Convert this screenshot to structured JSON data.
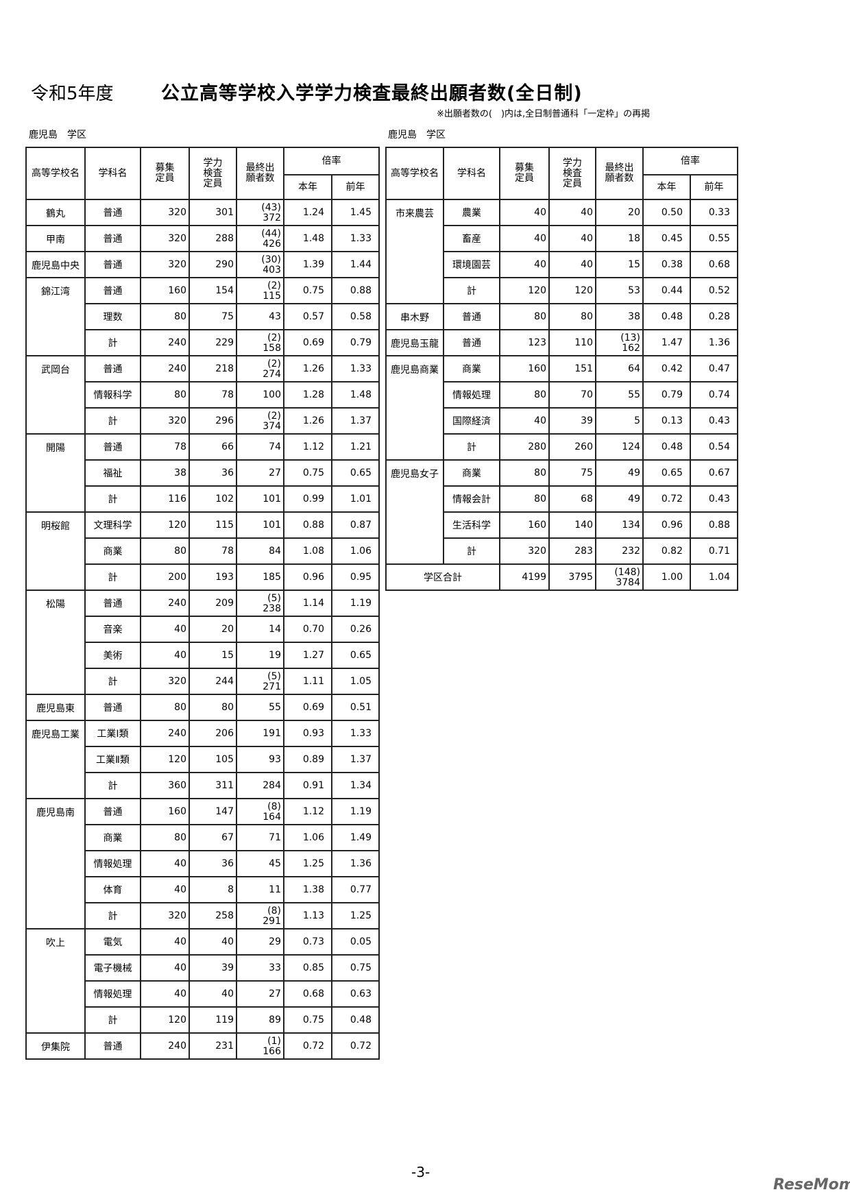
{
  "header": {
    "year": "令和5年度",
    "title": "公立高等学校入学学力検査最終出願者数(全日制)",
    "note": "※出願者数の(　)内は,全日制普通科「一定枠」の再掲"
  },
  "district_label": "鹿児島　学区",
  "columns": {
    "school": "高等学校名",
    "dept": "学科名",
    "boshu": "募集\n定員",
    "gakuryoku": "学力\n検査\n定員",
    "final": "最終出\n願者数",
    "ratio": "倍率",
    "this_year": "本年",
    "prev_year": "前年"
  },
  "left_table": [
    {
      "name": "鶴丸",
      "rows": [
        [
          "普通",
          "320",
          "301",
          "(43)",
          "372",
          "1.24",
          "1.45"
        ]
      ]
    },
    {
      "name": "甲南",
      "rows": [
        [
          "普通",
          "320",
          "288",
          "(44)",
          "426",
          "1.48",
          "1.33"
        ]
      ]
    },
    {
      "name": "鹿児島中央",
      "rows": [
        [
          "普通",
          "320",
          "290",
          "(30)",
          "403",
          "1.39",
          "1.44"
        ]
      ]
    },
    {
      "name": "錦江湾",
      "rows": [
        [
          "普通",
          "160",
          "154",
          "(2)",
          "115",
          "0.75",
          "0.88"
        ],
        [
          "理数",
          "80",
          "75",
          "",
          "43",
          "0.57",
          "0.58"
        ],
        [
          "計",
          "240",
          "229",
          "(2)",
          "158",
          "0.69",
          "0.79"
        ]
      ]
    },
    {
      "name": "武岡台",
      "rows": [
        [
          "普通",
          "240",
          "218",
          "(2)",
          "274",
          "1.26",
          "1.33"
        ],
        [
          "情報科学",
          "80",
          "78",
          "",
          "100",
          "1.28",
          "1.48"
        ],
        [
          "計",
          "320",
          "296",
          "(2)",
          "374",
          "1.26",
          "1.37"
        ]
      ]
    },
    {
      "name": "開陽",
      "rows": [
        [
          "普通",
          "78",
          "66",
          "",
          "74",
          "1.12",
          "1.21"
        ],
        [
          "福祉",
          "38",
          "36",
          "",
          "27",
          "0.75",
          "0.65"
        ],
        [
          "計",
          "116",
          "102",
          "",
          "101",
          "0.99",
          "1.01"
        ]
      ]
    },
    {
      "name": "明桜館",
      "rows": [
        [
          "文理科学",
          "120",
          "115",
          "",
          "101",
          "0.88",
          "0.87"
        ],
        [
          "商業",
          "80",
          "78",
          "",
          "84",
          "1.08",
          "1.06"
        ],
        [
          "計",
          "200",
          "193",
          "",
          "185",
          "0.96",
          "0.95"
        ]
      ]
    },
    {
      "name": "松陽",
      "rows": [
        [
          "普通",
          "240",
          "209",
          "(5)",
          "238",
          "1.14",
          "1.19"
        ],
        [
          "音楽",
          "40",
          "20",
          "",
          "14",
          "0.70",
          "0.26"
        ],
        [
          "美術",
          "40",
          "15",
          "",
          "19",
          "1.27",
          "0.65"
        ],
        [
          "計",
          "320",
          "244",
          "(5)",
          "271",
          "1.11",
          "1.05"
        ]
      ]
    },
    {
      "name": "鹿児島東",
      "rows": [
        [
          "普通",
          "80",
          "80",
          "",
          "55",
          "0.69",
          "0.51"
        ]
      ]
    },
    {
      "name": "鹿児島工業",
      "rows": [
        [
          "工業Ⅰ類",
          "240",
          "206",
          "",
          "191",
          "0.93",
          "1.33"
        ],
        [
          "工業Ⅱ類",
          "120",
          "105",
          "",
          "93",
          "0.89",
          "1.37"
        ],
        [
          "計",
          "360",
          "311",
          "",
          "284",
          "0.91",
          "1.34"
        ]
      ]
    },
    {
      "name": "鹿児島南",
      "rows": [
        [
          "普通",
          "160",
          "147",
          "(8)",
          "164",
          "1.12",
          "1.19"
        ],
        [
          "商業",
          "80",
          "67",
          "",
          "71",
          "1.06",
          "1.49"
        ],
        [
          "情報処理",
          "40",
          "36",
          "",
          "45",
          "1.25",
          "1.36"
        ],
        [
          "体育",
          "40",
          "8",
          "",
          "11",
          "1.38",
          "0.77"
        ],
        [
          "計",
          "320",
          "258",
          "(8)",
          "291",
          "1.13",
          "1.25"
        ]
      ]
    },
    {
      "name": "吹上",
      "rows": [
        [
          "電気",
          "40",
          "40",
          "",
          "29",
          "0.73",
          "0.05"
        ],
        [
          "電子機械",
          "40",
          "39",
          "",
          "33",
          "0.85",
          "0.75"
        ],
        [
          "情報処理",
          "40",
          "40",
          "",
          "27",
          "0.68",
          "0.63"
        ],
        [
          "計",
          "120",
          "119",
          "",
          "89",
          "0.75",
          "0.48"
        ]
      ]
    },
    {
      "name": "伊集院",
      "rows": [
        [
          "普通",
          "240",
          "231",
          "(1)",
          "166",
          "0.72",
          "0.72"
        ]
      ]
    }
  ],
  "right_table": [
    {
      "name": "市来農芸",
      "rows": [
        [
          "農業",
          "40",
          "40",
          "",
          "20",
          "0.50",
          "0.33"
        ],
        [
          "畜産",
          "40",
          "40",
          "",
          "18",
          "0.45",
          "0.55"
        ],
        [
          "環境園芸",
          "40",
          "40",
          "",
          "15",
          "0.38",
          "0.68"
        ],
        [
          "計",
          "120",
          "120",
          "",
          "53",
          "0.44",
          "0.52"
        ]
      ]
    },
    {
      "name": "串木野",
      "rows": [
        [
          "普通",
          "80",
          "80",
          "",
          "38",
          "0.48",
          "0.28"
        ]
      ]
    },
    {
      "name": "鹿児島玉龍",
      "rows": [
        [
          "普通",
          "123",
          "110",
          "(13)",
          "162",
          "1.47",
          "1.36"
        ]
      ]
    },
    {
      "name": "鹿児島商業",
      "rows": [
        [
          "商業",
          "160",
          "151",
          "",
          "64",
          "0.42",
          "0.47"
        ],
        [
          "情報処理",
          "80",
          "70",
          "",
          "55",
          "0.79",
          "0.74"
        ],
        [
          "国際経済",
          "40",
          "39",
          "",
          "5",
          "0.13",
          "0.43"
        ],
        [
          "計",
          "280",
          "260",
          "",
          "124",
          "0.48",
          "0.54"
        ]
      ]
    },
    {
      "name": "鹿児島女子",
      "rows": [
        [
          "商業",
          "80",
          "75",
          "",
          "49",
          "0.65",
          "0.67"
        ],
        [
          "情報会計",
          "80",
          "68",
          "",
          "49",
          "0.72",
          "0.43"
        ],
        [
          "生活科学",
          "160",
          "140",
          "",
          "134",
          "0.96",
          "0.88"
        ],
        [
          "計",
          "320",
          "283",
          "",
          "232",
          "0.82",
          "0.71"
        ]
      ]
    }
  ],
  "district_total": {
    "label": "学区合計",
    "values": [
      "4199",
      "3795",
      "(148)",
      "3784",
      "1.00",
      "1.04"
    ]
  },
  "page_number": "-3-",
  "watermark": "ReseMom"
}
